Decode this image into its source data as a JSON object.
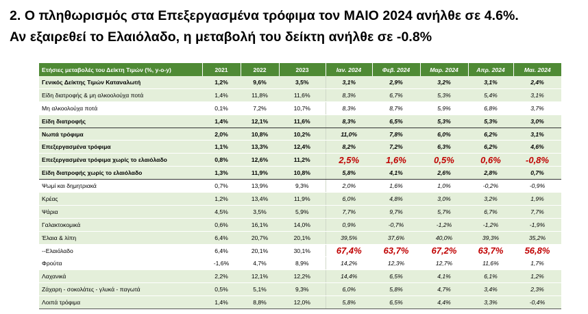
{
  "heading": {
    "line1": "2. Ο πληθωρισμός στα Επεξεργασμένα τρόφιμα τον ΜΑΙΟ 2024 ανήλθε σε 4.6%.",
    "line2": "Αν εξαιρεθεί το Ελαιόλαδο, η μεταβολή του δείκτη ανήλθε σε -0.8%"
  },
  "table": {
    "headers": [
      "Ετήσιες μεταβολές του Δείκτη Τιμών (%, y-o-y)",
      "2021",
      "2022",
      "2023",
      "Ιαν. 2024",
      "Φεβ. 2024",
      "Μαρ. 2024",
      "Απρ. 2024",
      "Μαι. 2024"
    ],
    "rows": [
      {
        "label": "Γενικός Δείκτης Τιμών Καταναλωτή",
        "values": [
          "1,2%",
          "9,6%",
          "3,5%",
          "3,1%",
          "2,9%",
          "3,2%",
          "3,1%",
          "2,4%"
        ]
      },
      {
        "label": "Είδη διατροφής & μη αλκοολούχα ποτά",
        "values": [
          "1,4%",
          "11,8%",
          "11,6%",
          "8,3%",
          "6,7%",
          "5,3%",
          "5,4%",
          "3,1%"
        ]
      },
      {
        "label": "Μη αλκοολούχα ποτά",
        "values": [
          "0,1%",
          "7,2%",
          "10,7%",
          "8,3%",
          "8,7%",
          "5,9%",
          "6,8%",
          "3,7%"
        ]
      },
      {
        "label": "Είδη διατροφής",
        "values": [
          "1,4%",
          "12,1%",
          "11,6%",
          "8,3%",
          "6,5%",
          "5,3%",
          "5,3%",
          "3,0%"
        ]
      },
      {
        "label": "Νωπά τρόφιμα",
        "values": [
          "2,0%",
          "10,8%",
          "10,2%",
          "11,0%",
          "7,8%",
          "6,0%",
          "6,2%",
          "3,1%"
        ]
      },
      {
        "label": "Επεξεργασμένα τρόφιμα",
        "values": [
          "1,1%",
          "13,3%",
          "12,4%",
          "8,2%",
          "7,2%",
          "6,3%",
          "6,2%",
          "4,6%"
        ]
      },
      {
        "label": "Επεξεργασμένα τρόφιμα χωρίς το ελαιόλαδο",
        "values": [
          "0,8%",
          "12,6%",
          "11,2%",
          "2,5%",
          "1,6%",
          "0,5%",
          "0,6%",
          "-0,8%"
        ]
      },
      {
        "label": "Είδη διατροφής χωρίς το ελαιόλαδο",
        "values": [
          "1,3%",
          "11,9%",
          "10,8%",
          "5,8%",
          "4,1%",
          "2,6%",
          "2,8%",
          "0,7%"
        ]
      },
      {
        "label": "Ψωμί και δημητριακά",
        "values": [
          "0,7%",
          "13,9%",
          "9,3%",
          "2,0%",
          "1,6%",
          "1,0%",
          "-0,2%",
          "-0,9%"
        ]
      },
      {
        "label": "Κρέας",
        "values": [
          "1,2%",
          "13,4%",
          "11,9%",
          "6,0%",
          "4,8%",
          "3,0%",
          "3,2%",
          "1,9%"
        ]
      },
      {
        "label": "Ψάρια",
        "values": [
          "4,5%",
          "3,5%",
          "5,9%",
          "7,7%",
          "9,7%",
          "5,7%",
          "6,7%",
          "7,7%"
        ]
      },
      {
        "label": "Γαλακτοκομικά",
        "values": [
          "0,6%",
          "16,1%",
          "14,0%",
          "0,9%",
          "-0,7%",
          "-1,2%",
          "-1,2%",
          "-1,9%"
        ]
      },
      {
        "label": "Έλαια & λίπη",
        "values": [
          "6,4%",
          "20,7%",
          "20,1%",
          "39,5%",
          "37,6%",
          "40,0%",
          "39,3%",
          "35,2%"
        ]
      },
      {
        "label": "--Ελαιόλαδο",
        "values": [
          "6,4%",
          "20,1%",
          "30,1%",
          "67,4%",
          "63,7%",
          "67,2%",
          "63,7%",
          "56,8%"
        ]
      },
      {
        "label": "Φρούτα",
        "values": [
          "-1,6%",
          "4,7%",
          "8,9%",
          "14,2%",
          "12,3%",
          "12,7%",
          "11,6%",
          "1,7%"
        ]
      },
      {
        "label": "Λαχανικά",
        "values": [
          "2,2%",
          "12,1%",
          "12,2%",
          "14,4%",
          "6,5%",
          "4,1%",
          "6,1%",
          "1,2%"
        ]
      },
      {
        "label": "Ζάχαρη - σοκολάτες - γλυκά - παγωτά",
        "values": [
          "0,5%",
          "5,1%",
          "9,3%",
          "6,0%",
          "5,8%",
          "4,7%",
          "3,4%",
          "2,3%"
        ]
      },
      {
        "label": "Λοιπά τρόφιμα",
        "values": [
          "1,4%",
          "8,8%",
          "12,0%",
          "5,8%",
          "6,5%",
          "4,4%",
          "3,3%",
          "-0,4%"
        ]
      }
    ]
  },
  "colors": {
    "header_bg": "#4f8a35",
    "header_text": "#ffffff",
    "row_shade": "#e4efda",
    "highlight_red": "#c00000"
  }
}
